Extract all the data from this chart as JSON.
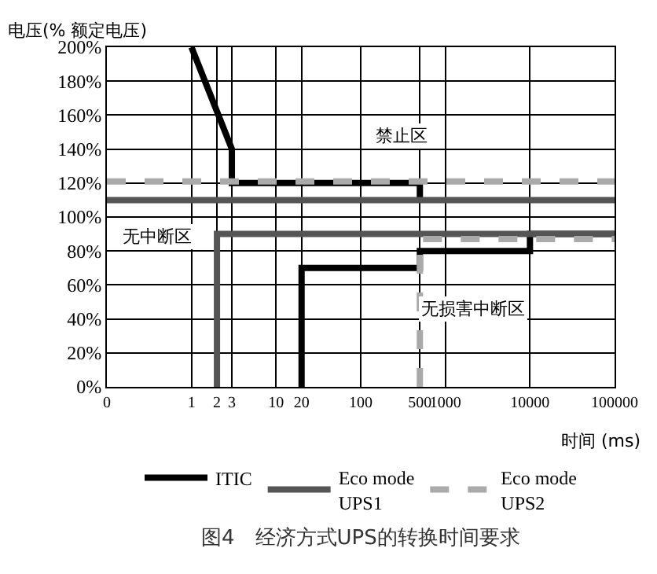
{
  "chart_data": {
    "type": "line",
    "xlabel": "时间 (ms)",
    "ylabel": "电压(% 额定电压)",
    "log": "x",
    "xlim": [
      0.1,
      100000
    ],
    "xticks": [
      {
        "value": 0.1,
        "label": "0"
      },
      1,
      2,
      3,
      10,
      20,
      100,
      500,
      1000,
      10000,
      100000
    ],
    "ylim": [
      0,
      200
    ],
    "yticks": [
      {
        "value": 0,
        "label": "0%"
      },
      {
        "value": 20,
        "label": "20%"
      },
      {
        "value": 40,
        "label": "40%"
      },
      {
        "value": 60,
        "label": "60%"
      },
      {
        "value": 80,
        "label": "80%"
      },
      {
        "value": 100,
        "label": "100%"
      },
      {
        "value": 120,
        "label": "120%"
      },
      {
        "value": 140,
        "label": "140%"
      },
      {
        "value": 160,
        "label": "160%"
      },
      {
        "value": 180,
        "label": "180%"
      },
      {
        "value": 200,
        "label": "200%"
      }
    ],
    "grid": true,
    "legend": "bottom",
    "marker": "none",
    "series": [
      {
        "name": "ITIC",
        "color": "#000000",
        "line_style": "solid",
        "x": [
          1,
          3,
          3,
          500,
          500,
          null,
          20,
          20,
          500,
          500,
          10000,
          10000,
          100000
        ],
        "values": [
          200,
          140,
          120,
          120,
          110,
          null,
          0,
          70,
          70,
          80,
          80,
          90,
          90
        ]
      },
      {
        "name": "Eco mode\nUPS1",
        "color": "#555555",
        "line_style": "solid",
        "x": [
          0.1,
          100000,
          null,
          2,
          2,
          100000
        ],
        "values": [
          110,
          110,
          null,
          0,
          90,
          90
        ]
      },
      {
        "name": "Eco mode\nUPS2",
        "color": "#aaaaaa",
        "line_style": "dashed",
        "x": [
          0.1,
          100000,
          null,
          500,
          500,
          100000
        ],
        "values": [
          121,
          121,
          null,
          0,
          87,
          87
        ]
      }
    ],
    "annotations": [
      "禁止区",
      "无中断区",
      "无损害中断区",
      "图4　经济方式UPS的转换时间要求"
    ]
  }
}
